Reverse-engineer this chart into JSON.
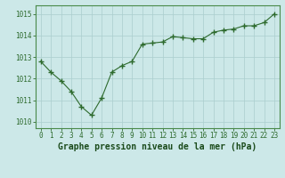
{
  "x": [
    0,
    1,
    2,
    3,
    4,
    5,
    6,
    7,
    8,
    9,
    10,
    11,
    12,
    13,
    14,
    15,
    16,
    17,
    18,
    19,
    20,
    21,
    22,
    23
  ],
  "y": [
    1012.8,
    1012.3,
    1011.9,
    1011.4,
    1010.7,
    1010.3,
    1011.1,
    1012.3,
    1012.6,
    1012.8,
    1013.6,
    1013.65,
    1013.7,
    1013.95,
    1013.9,
    1013.85,
    1013.85,
    1014.15,
    1014.25,
    1014.3,
    1014.45,
    1014.45,
    1014.6,
    1015.0
  ],
  "line_color": "#2d6a2d",
  "marker_color": "#2d6a2d",
  "bg_color": "#cce8e8",
  "grid_color": "#aacece",
  "title": "Graphe pression niveau de la mer (hPa)",
  "title_color": "#1a4a1a",
  "title_fontsize": 7.0,
  "xlabel_ticks": [
    0,
    1,
    2,
    3,
    4,
    5,
    6,
    7,
    8,
    9,
    10,
    11,
    12,
    13,
    14,
    15,
    16,
    17,
    18,
    19,
    20,
    21,
    22,
    23
  ],
  "ylabel_ticks": [
    1010,
    1011,
    1012,
    1013,
    1014,
    1015
  ],
  "ylim": [
    1009.7,
    1015.4
  ],
  "xlim": [
    -0.5,
    23.5
  ],
  "tick_color": "#2d6a2d",
  "tick_fontsize": 5.5,
  "spine_color": "#4a8a4a"
}
